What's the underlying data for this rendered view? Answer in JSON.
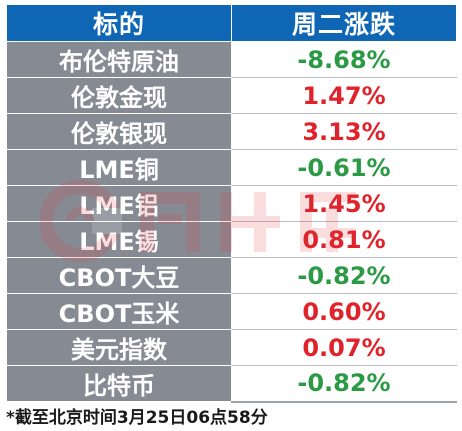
{
  "header": {
    "col1": "标的",
    "col2": "周二涨跌"
  },
  "rows": [
    {
      "name": "布伦特原油",
      "change": "-8.68%",
      "direction": "down"
    },
    {
      "name": "伦敦金现",
      "change": "1.47%",
      "direction": "up"
    },
    {
      "name": "伦敦银现",
      "change": "3.13%",
      "direction": "up"
    },
    {
      "name": "LME铜",
      "change": "-0.61%",
      "direction": "down"
    },
    {
      "name": "LME铝",
      "change": "1.45%",
      "direction": "up"
    },
    {
      "name": "LME锡",
      "change": "0.81%",
      "direction": "up"
    },
    {
      "name": "CBOT大豆",
      "change": "-0.82%",
      "direction": "down"
    },
    {
      "name": "CBOT玉米",
      "change": "0.60%",
      "direction": "up"
    },
    {
      "name": "美元指数",
      "change": "0.07%",
      "direction": "up"
    },
    {
      "name": "比特币",
      "change": "-0.82%",
      "direction": "down"
    }
  ],
  "footnote": "*截至北京时间3月25日06点58分",
  "colors": {
    "header_bg": "#0f66b5",
    "name_bg": "#868b93",
    "up": "#e0232b",
    "down": "#2b9a45"
  },
  "watermark": {
    "icon": "cls-logo-icon",
    "text": "财联社"
  }
}
